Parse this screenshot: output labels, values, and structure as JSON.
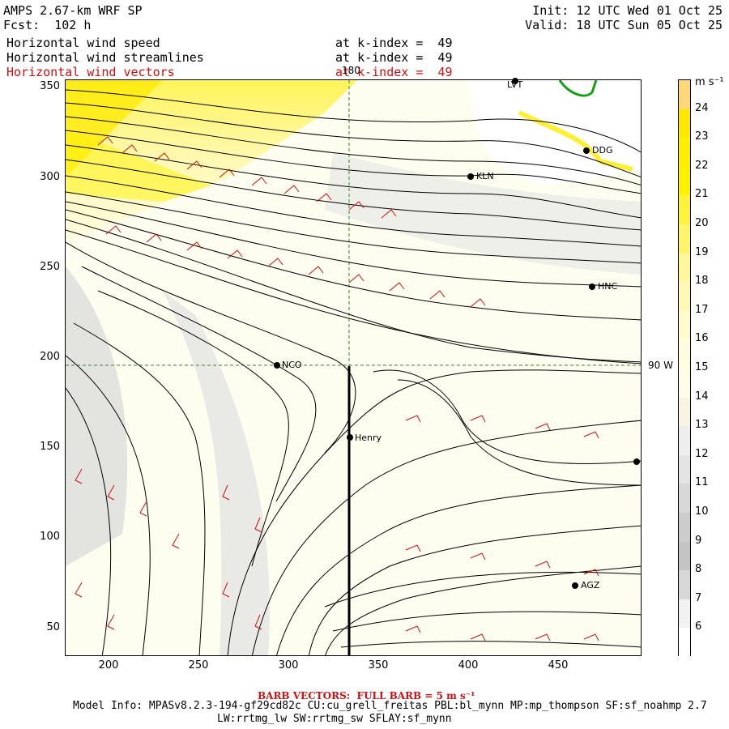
{
  "header": {
    "title": "AMPS 2.67-km WRF SP",
    "forecast": "Fcst:  102 h",
    "init": "Init: 12 UTC Wed 01 Oct 25",
    "valid": "Valid: 18 UTC Sun 05 Oct 25"
  },
  "fields": [
    {
      "name": "Horizontal wind speed",
      "level": "at k-index =  49",
      "color": "#000000"
    },
    {
      "name": "Horizontal wind streamlines",
      "level": "at k-index =  49",
      "color": "#000000"
    },
    {
      "name": "Horizontal wind vectors",
      "level": "at k-index =  49",
      "color": "#d01010"
    }
  ],
  "map": {
    "x_ticks": [
      "200",
      "250",
      "300",
      "350",
      "400",
      "450"
    ],
    "y_ticks": [
      "350",
      "300",
      "250",
      "200",
      "150",
      "100",
      "50"
    ],
    "meridian_label": "180",
    "parallel_label": "90 W",
    "stations": [
      {
        "label": "NCO"
      },
      {
        "label": "Henry"
      },
      {
        "label": "KLN"
      },
      {
        "label": "DDG"
      },
      {
        "label": "HNC"
      },
      {
        "label": "AGZ"
      },
      {
        "label": "LVT"
      },
      {
        "label": ""
      }
    ]
  },
  "colorbar": {
    "unit": "m s⁻¹",
    "levels": [
      "24",
      "23",
      "22",
      "21",
      "20",
      "19",
      "18",
      "17",
      "16",
      "15",
      "14",
      "13",
      "12",
      "11",
      "10",
      "9",
      "8",
      "7",
      "6"
    ],
    "colors": [
      "#ffd87a",
      "#ffe800",
      "#ffef00",
      "#fff200",
      "#fff23a",
      "#fff46a",
      "#fff79a",
      "#fff9b8",
      "#fffbce",
      "#fffce0",
      "#fdfde8",
      "#f5f5e2",
      "#eeeeee",
      "#e4e4e4",
      "#d8d8d8",
      "#cccccc",
      "#c4c4c4",
      "#d7d7d7",
      "#f2f2f2",
      "#ffffff"
    ]
  },
  "footer": {
    "barb_note": "BARB VECTORS:  FULL BARB = 5 m s⁻¹",
    "model_info": "Model Info: MPASv8.2.3-194-gf29cd82c CU:cu_grell_freitas PBL:bl_mynn MP:mp_thompson SF:sf_noahmp 2.7",
    "physics": "LW:rrtmg_lw SW:rrtmg_sw SFLAY:sf_mynn"
  }
}
